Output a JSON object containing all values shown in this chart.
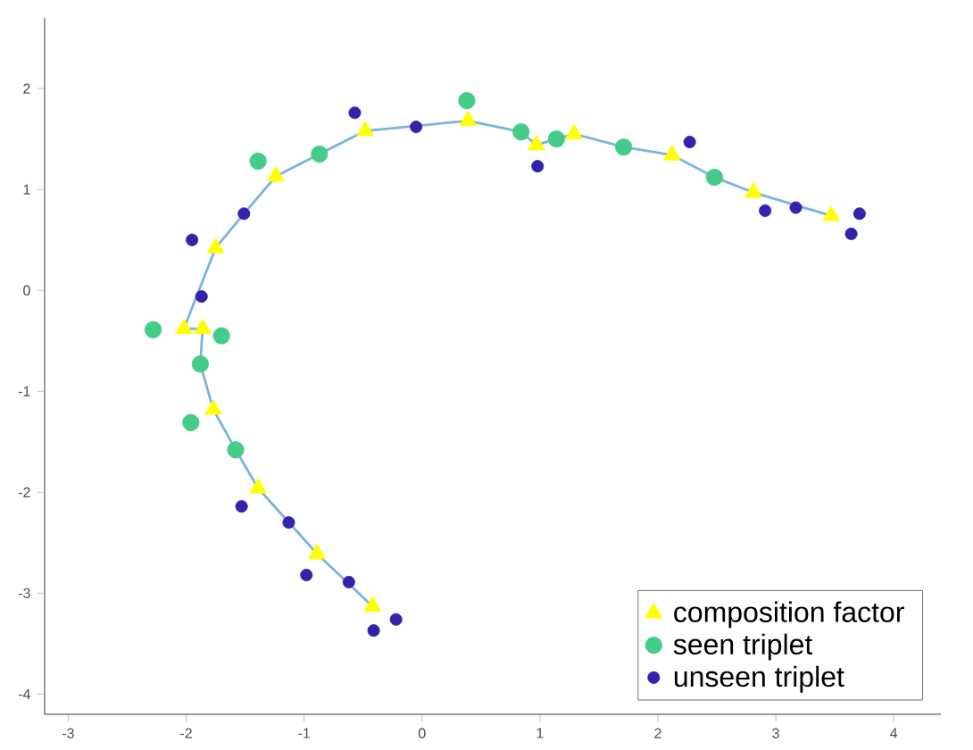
{
  "chart_data": {
    "type": "scatter",
    "xlim": [
      -3.2,
      4.4
    ],
    "ylim": [
      -4.2,
      2.7
    ],
    "xticks": [
      -3,
      -2,
      -1,
      0,
      1,
      2,
      3,
      4
    ],
    "yticks": [
      -4,
      -3,
      -2,
      -1,
      0,
      1,
      2
    ],
    "grid": false,
    "legend": "bottom right",
    "series": [
      {
        "type": "line",
        "color": "#7ab4e0",
        "marker": "none",
        "x": [
          -0.42,
          -0.89,
          -1.39,
          -1.58,
          -1.77,
          -1.88,
          -1.86,
          -2.02,
          -1.75,
          -1.51,
          -1.24,
          -0.87,
          -0.48,
          0.39,
          0.84,
          0.97,
          1.14,
          1.29,
          1.71,
          2.12,
          2.48,
          2.81,
          3.47
        ],
        "values": [
          -3.13,
          -2.61,
          -1.96,
          -1.58,
          -1.18,
          -0.73,
          -0.38,
          -0.38,
          0.42,
          0.76,
          1.13,
          1.35,
          1.58,
          1.68,
          1.57,
          1.44,
          1.5,
          1.55,
          1.42,
          1.34,
          1.12,
          0.97,
          0.74
        ]
      },
      {
        "name": "composition factor",
        "marker": "triangle",
        "color": "#ffff00",
        "x": [
          -0.42,
          -0.89,
          -1.39,
          -1.77,
          -1.86,
          -2.02,
          -1.75,
          -1.24,
          -0.48,
          0.39,
          0.97,
          1.29,
          2.12,
          2.81,
          3.47
        ],
        "values": [
          -3.13,
          -2.61,
          -1.96,
          -1.18,
          -0.38,
          -0.38,
          0.42,
          1.13,
          1.58,
          1.68,
          1.44,
          1.55,
          1.34,
          0.97,
          0.74
        ]
      },
      {
        "name": "seen triplet",
        "marker": "circle",
        "color": "#44cc88",
        "x": [
          0.38,
          -1.39,
          -0.87,
          -2.28,
          -1.7,
          -1.88,
          0.84,
          1.14,
          1.71,
          2.48,
          -1.96,
          -1.58
        ],
        "values": [
          1.88,
          1.28,
          1.35,
          -0.39,
          -0.45,
          -0.73,
          1.57,
          1.5,
          1.42,
          1.12,
          -1.31,
          -1.58
        ]
      },
      {
        "name": "unseen triplet",
        "marker": "circle",
        "color": "#3322aa",
        "x": [
          -0.57,
          -0.05,
          -1.51,
          -1.95,
          -1.87,
          0.98,
          2.27,
          2.91,
          3.17,
          3.71,
          3.64,
          -1.53,
          -1.13,
          -0.98,
          -0.62,
          -0.22,
          -0.41
        ],
        "values": [
          1.76,
          1.62,
          0.76,
          0.5,
          -0.06,
          1.23,
          1.47,
          0.79,
          0.82,
          0.76,
          0.56,
          -2.14,
          -2.3,
          -2.82,
          -2.89,
          -3.26,
          -3.37
        ]
      }
    ]
  }
}
